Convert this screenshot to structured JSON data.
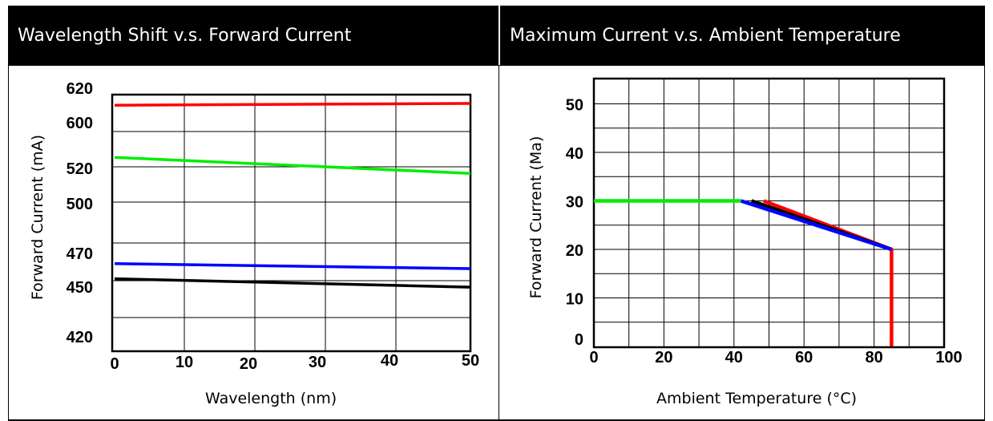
{
  "header": {
    "left_title": "Wavelength Shift v.s. Forward Current",
    "right_title": "Maximum Current v.s. Ambient Temperature"
  },
  "chart_data": [
    {
      "type": "line",
      "xlabel": "Wavelength (nm)",
      "ylabel": "Forward Current (mA)",
      "x_ticks": [
        "0",
        "10",
        "20",
        "30",
        "40",
        "50"
      ],
      "y_ticks": [
        "420",
        "450",
        "470",
        "500",
        "520",
        "600",
        "620"
      ],
      "xlim": [
        0,
        50
      ],
      "grid": true,
      "colors": {
        "red": "#ff0000",
        "green": "#00ee00",
        "blue": "#0000ff",
        "black": "#000000"
      },
      "series": [
        {
          "color": "red",
          "x": [
            0,
            50
          ],
          "y": [
            619,
            623
          ]
        },
        {
          "color": "green",
          "x": [
            0,
            50
          ],
          "y": [
            566,
            538
          ]
        },
        {
          "color": "blue",
          "x": [
            0,
            50
          ],
          "y": [
            473,
            470
          ]
        },
        {
          "color": "black",
          "x": [
            0,
            50
          ],
          "y": [
            464,
            459
          ]
        }
      ]
    },
    {
      "type": "line",
      "xlabel": "Ambient Temperature (°C)",
      "ylabel": "Forward Current (Ma)",
      "x_ticks": [
        "0",
        "20",
        "40",
        "60",
        "80",
        "100"
      ],
      "y_ticks": [
        "0",
        "10",
        "20",
        "30",
        "40",
        "50"
      ],
      "xlim": [
        0,
        100
      ],
      "ylim": [
        0,
        53
      ],
      "grid": true,
      "colors": {
        "red": "#ff0000",
        "green": "#00ee00",
        "blue": "#0000ff",
        "black": "#000000"
      },
      "series": [
        {
          "color": "red",
          "x": [
            48.5,
            85,
            85
          ],
          "y": [
            30,
            20,
            0
          ]
        },
        {
          "color": "black",
          "x": [
            45,
            85
          ],
          "y": [
            30,
            20
          ]
        },
        {
          "color": "blue",
          "x": [
            42,
            85
          ],
          "y": [
            30,
            20
          ]
        },
        {
          "color": "green",
          "x": [
            0,
            42
          ],
          "y": [
            30,
            30
          ]
        }
      ]
    }
  ]
}
